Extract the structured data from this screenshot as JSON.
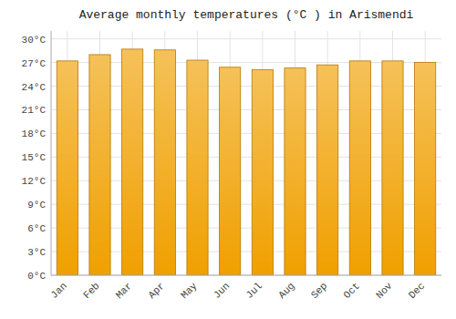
{
  "chart_data": {
    "type": "bar",
    "title": "Average monthly temperatures (°C ) in Arismendi",
    "categories": [
      "Jan",
      "Feb",
      "Mar",
      "Apr",
      "May",
      "Jun",
      "Jul",
      "Aug",
      "Sep",
      "Oct",
      "Nov",
      "Dec"
    ],
    "values": [
      27.2,
      28.0,
      28.7,
      28.6,
      27.3,
      26.4,
      26.1,
      26.3,
      26.7,
      27.2,
      27.2,
      27.0
    ],
    "color": "#F0A000",
    "ylim": [
      0,
      31
    ],
    "yticks": [
      {
        "value": 0,
        "label": "0°C"
      },
      {
        "value": 3,
        "label": "3°C"
      },
      {
        "value": 6,
        "label": "6°C"
      },
      {
        "value": 9,
        "label": "9°C"
      },
      {
        "value": 12,
        "label": "12°C"
      },
      {
        "value": 15,
        "label": "15°C"
      },
      {
        "value": 18,
        "label": "18°C"
      },
      {
        "value": 21,
        "label": "21°C"
      },
      {
        "value": 24,
        "label": "24°C"
      },
      {
        "value": 27,
        "label": "27°C"
      },
      {
        "value": 30,
        "label": "30°C"
      }
    ],
    "grid": true
  }
}
